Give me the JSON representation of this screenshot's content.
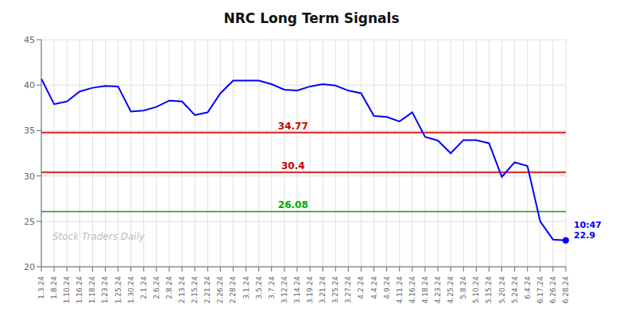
{
  "chart_data": {
    "type": "line",
    "title": "NRC Long Term Signals",
    "categories": [
      "1.3.24",
      "1.8.24",
      "1.10.24",
      "1.16.24",
      "1.18.24",
      "1.23.24",
      "1.25.24",
      "1.30.24",
      "2.1.24",
      "2.6.24",
      "2.8.24",
      "2.13.24",
      "2.15.24",
      "2.21.24",
      "2.26.24",
      "2.28.24",
      "3.1.24",
      "3.5.24",
      "3.7.24",
      "3.12.24",
      "3.14.24",
      "3.19.24",
      "3.21.24",
      "3.25.24",
      "3.27.24",
      "4.2.24",
      "4.4.24",
      "4.9.24",
      "4.11.24",
      "4.16.24",
      "4.18.24",
      "4.23.24",
      "4.25.24",
      "5.8.24",
      "5.10.24",
      "5.15.24",
      "5.20.24",
      "5.24.24",
      "6.4.24",
      "6.17.24",
      "6.26.24",
      "6.28.24"
    ],
    "values": [
      40.7,
      37.9,
      38.2,
      39.3,
      39.7,
      39.9,
      39.85,
      37.1,
      37.2,
      37.6,
      38.3,
      38.2,
      36.7,
      37.0,
      39.1,
      40.5,
      40.5,
      40.5,
      40.1,
      39.5,
      39.4,
      39.85,
      40.1,
      39.95,
      39.4,
      39.1,
      36.6,
      36.5,
      36.0,
      37.0,
      34.3,
      33.9,
      32.5,
      33.95,
      33.95,
      33.6,
      29.9,
      31.5,
      31.1,
      25.0,
      23.0,
      22.9
    ],
    "color": "blue",
    "ylim": [
      20,
      45
    ],
    "yticks": [
      20,
      25,
      30,
      35,
      40,
      45
    ],
    "grid": true,
    "reference_lines": [
      {
        "value": 34.77,
        "label": "34.77",
        "color": "#cc0000",
        "band_color": "#ffcccc"
      },
      {
        "value": 30.4,
        "label": "30.4",
        "color": "#cc0000",
        "band_color": "#ffcccc"
      },
      {
        "value": 26.08,
        "label": "26.08",
        "color": "#00aa00"
      }
    ],
    "annotations": [
      {
        "text": [
          "10:47",
          "22.9"
        ],
        "color": "blue"
      }
    ],
    "watermark": {
      "text": "Stock Traders Daily",
      "color": "#bbbbbb"
    }
  }
}
